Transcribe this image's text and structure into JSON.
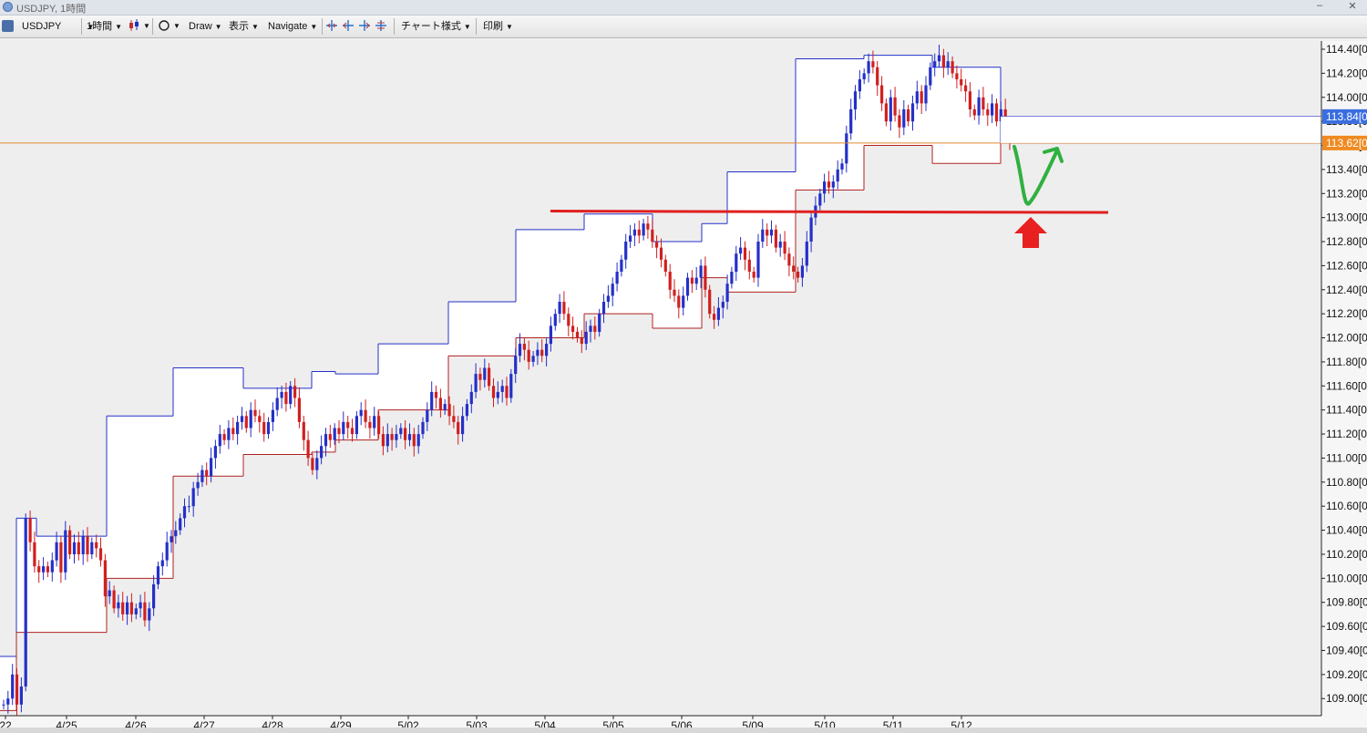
{
  "window": {
    "title": "USDJPY, 1時間",
    "minimize": "–",
    "close": "✕"
  },
  "toolbar": {
    "symbol": "USDJPY",
    "timeframe": "1時間",
    "draw": "Draw",
    "display": "表示",
    "navigate": "Navigate",
    "chart_style": "チャート様式",
    "print": "印刷"
  },
  "icons": {
    "app": "chart-app-icon",
    "candles": "candlestick-icon",
    "circle": "circle-tool-icon",
    "cursors": [
      "crosshair-icon",
      "crosshair-left-icon",
      "crosshair-right-icon",
      "crosshair-split-icon"
    ]
  },
  "colors": {
    "background": "#eeeeee",
    "plot_bg": "#ffffff",
    "up_candle": "#2430c8",
    "down_candle": "#d02020",
    "box_upper": "#2430c8",
    "box_lower": "#b02020",
    "resistance_line": "#e02020",
    "current_price_line": "#e08a30",
    "arrow": "#e82020",
    "forecast": "#30b040"
  },
  "chart_data": {
    "type": "candlestick",
    "symbol": "USDJPY",
    "timeframe": "1時間",
    "ylim": [
      108.85,
      114.45
    ],
    "y_ticks": [
      "114.40[0",
      "114.20[0",
      "114.00[0",
      "113.80[0",
      "113.60[0",
      "113.40[0",
      "113.20[0",
      "113.00[0",
      "112.80[0",
      "112.60[0",
      "112.40[0",
      "112.20[0",
      "112.00[0",
      "111.80[0",
      "111.60[0",
      "111.40[0",
      "111.20[0",
      "111.00[0",
      "110.80[0",
      "110.60[0",
      "110.40[0",
      "110.20[0",
      "110.00[0",
      "109.80[0",
      "109.60[0",
      "109.40[0",
      "109.20[0",
      "109.00[0"
    ],
    "y_tick_values": [
      114.4,
      114.2,
      114.0,
      113.8,
      113.6,
      113.4,
      113.2,
      113.0,
      112.8,
      112.6,
      112.4,
      112.2,
      112.0,
      111.8,
      111.6,
      111.4,
      111.2,
      111.0,
      110.8,
      110.6,
      110.4,
      110.2,
      110.0,
      109.8,
      109.6,
      109.4,
      109.2,
      109.0
    ],
    "x_labels": [
      "22",
      "4/25",
      "4/26",
      "4/27",
      "4/28",
      "4/29",
      "5/02",
      "5/03",
      "5/04",
      "5/05",
      "5/06",
      "5/09",
      "5/10",
      "5/11",
      "5/12"
    ],
    "price_labels": [
      {
        "text": "113.84[0",
        "value": 113.84,
        "color": "#3a6ee0"
      },
      {
        "text": "113.62[0",
        "value": 113.62,
        "color": "#f08a20"
      }
    ],
    "current_price": 113.62,
    "box_line_price": 113.84,
    "resistance": 113.05,
    "daily_ranges": [
      {
        "label": "22",
        "high": 109.35,
        "low": 108.9
      },
      {
        "label": "4/25",
        "high": 110.5,
        "low": 109.55
      },
      {
        "label": "4/25",
        "high": 110.35,
        "low": 109.55
      },
      {
        "label": "4/26",
        "high": 111.35,
        "low": 110.0
      },
      {
        "label": "4/27",
        "high": 111.75,
        "low": 110.85
      },
      {
        "label": "4/28",
        "high": 111.58,
        "low": 111.03
      },
      {
        "label": "4/29",
        "high": 111.72,
        "low": 111.05
      },
      {
        "label": "4/29",
        "high": 111.7,
        "low": 111.15
      },
      {
        "label": "5/02",
        "high": 111.95,
        "low": 111.4
      },
      {
        "label": "5/03",
        "high": 112.3,
        "low": 111.85
      },
      {
        "label": "5/04",
        "high": 112.9,
        "low": 112.0
      },
      {
        "label": "5/05",
        "high": 113.03,
        "low": 112.2
      },
      {
        "label": "5/06",
        "high": 112.8,
        "low": 112.08
      },
      {
        "label": "5/06",
        "high": 112.95,
        "low": 112.5
      },
      {
        "label": "5/09",
        "high": 113.38,
        "low": 112.38
      },
      {
        "label": "5/10",
        "high": 114.32,
        "low": 113.23
      },
      {
        "label": "5/11",
        "high": 114.35,
        "low": 113.6
      },
      {
        "label": "5/12",
        "high": 114.25,
        "low": 113.45
      },
      {
        "label": "5/12",
        "high": 113.84,
        "low": 113.62
      }
    ],
    "series": [
      {
        "name": "USDJPY",
        "close": [
          108.95,
          109.0,
          109.2,
          108.95,
          109.1,
          110.5,
          110.3,
          110.1,
          110.05,
          110.1,
          110.05,
          110.15,
          110.3,
          110.05,
          110.4,
          110.2,
          110.3,
          110.2,
          110.35,
          110.2,
          110.3,
          110.25,
          110.15,
          109.85,
          109.9,
          109.75,
          109.8,
          109.7,
          109.8,
          109.7,
          109.75,
          109.8,
          109.65,
          109.75,
          109.95,
          110.1,
          110.15,
          110.3,
          110.35,
          110.4,
          110.5,
          110.6,
          110.6,
          110.75,
          110.8,
          110.9,
          110.85,
          111.0,
          111.1,
          111.2,
          111.15,
          111.25,
          111.2,
          111.3,
          111.35,
          111.25,
          111.4,
          111.35,
          111.3,
          111.2,
          111.3,
          111.4,
          111.5,
          111.55,
          111.45,
          111.6,
          111.5,
          111.3,
          111.15,
          111.0,
          110.9,
          111.0,
          111.1,
          111.2,
          111.15,
          111.25,
          111.2,
          111.3,
          111.25,
          111.2,
          111.35,
          111.4,
          111.3,
          111.25,
          111.35,
          111.2,
          111.1,
          111.2,
          111.15,
          111.2,
          111.25,
          111.15,
          111.2,
          111.1,
          111.2,
          111.3,
          111.4,
          111.55,
          111.5,
          111.4,
          111.45,
          111.35,
          111.3,
          111.2,
          111.35,
          111.45,
          111.55,
          111.7,
          111.65,
          111.75,
          111.6,
          111.5,
          111.55,
          111.6,
          111.5,
          111.7,
          111.85,
          111.95,
          111.9,
          111.8,
          111.85,
          111.9,
          111.85,
          111.95,
          112.1,
          112.2,
          112.3,
          112.2,
          112.1,
          112.05,
          112.0,
          111.95,
          112.05,
          112.1,
          112.05,
          112.2,
          112.3,
          112.35,
          112.45,
          112.55,
          112.65,
          112.8,
          112.85,
          112.9,
          112.85,
          112.95,
          112.9,
          112.8,
          112.75,
          112.65,
          112.55,
          112.4,
          112.35,
          112.25,
          112.35,
          112.5,
          112.45,
          112.5,
          112.6,
          112.4,
          112.2,
          112.15,
          112.25,
          112.3,
          112.45,
          112.55,
          112.7,
          112.75,
          112.65,
          112.55,
          112.5,
          112.8,
          112.9,
          112.85,
          112.9,
          112.75,
          112.8,
          112.7,
          112.6,
          112.55,
          112.5,
          112.6,
          112.8,
          113.0,
          113.1,
          113.2,
          113.3,
          113.25,
          113.3,
          113.4,
          113.45,
          113.7,
          113.9,
          114.05,
          114.15,
          114.2,
          114.3,
          114.25,
          114.1,
          113.95,
          113.8,
          114.0,
          113.85,
          113.75,
          113.9,
          113.8,
          113.95,
          114.05,
          113.95,
          114.1,
          114.25,
          114.3,
          114.35,
          114.25,
          114.3,
          114.2,
          114.15,
          114.1,
          114.05,
          113.9,
          113.85,
          114.0,
          113.9,
          113.85,
          113.95,
          113.8,
          113.9,
          113.75,
          113.65
        ]
      }
    ]
  },
  "annotations": {
    "forecast": "V-shaped rebound path toward resistance",
    "arrow": "up"
  }
}
